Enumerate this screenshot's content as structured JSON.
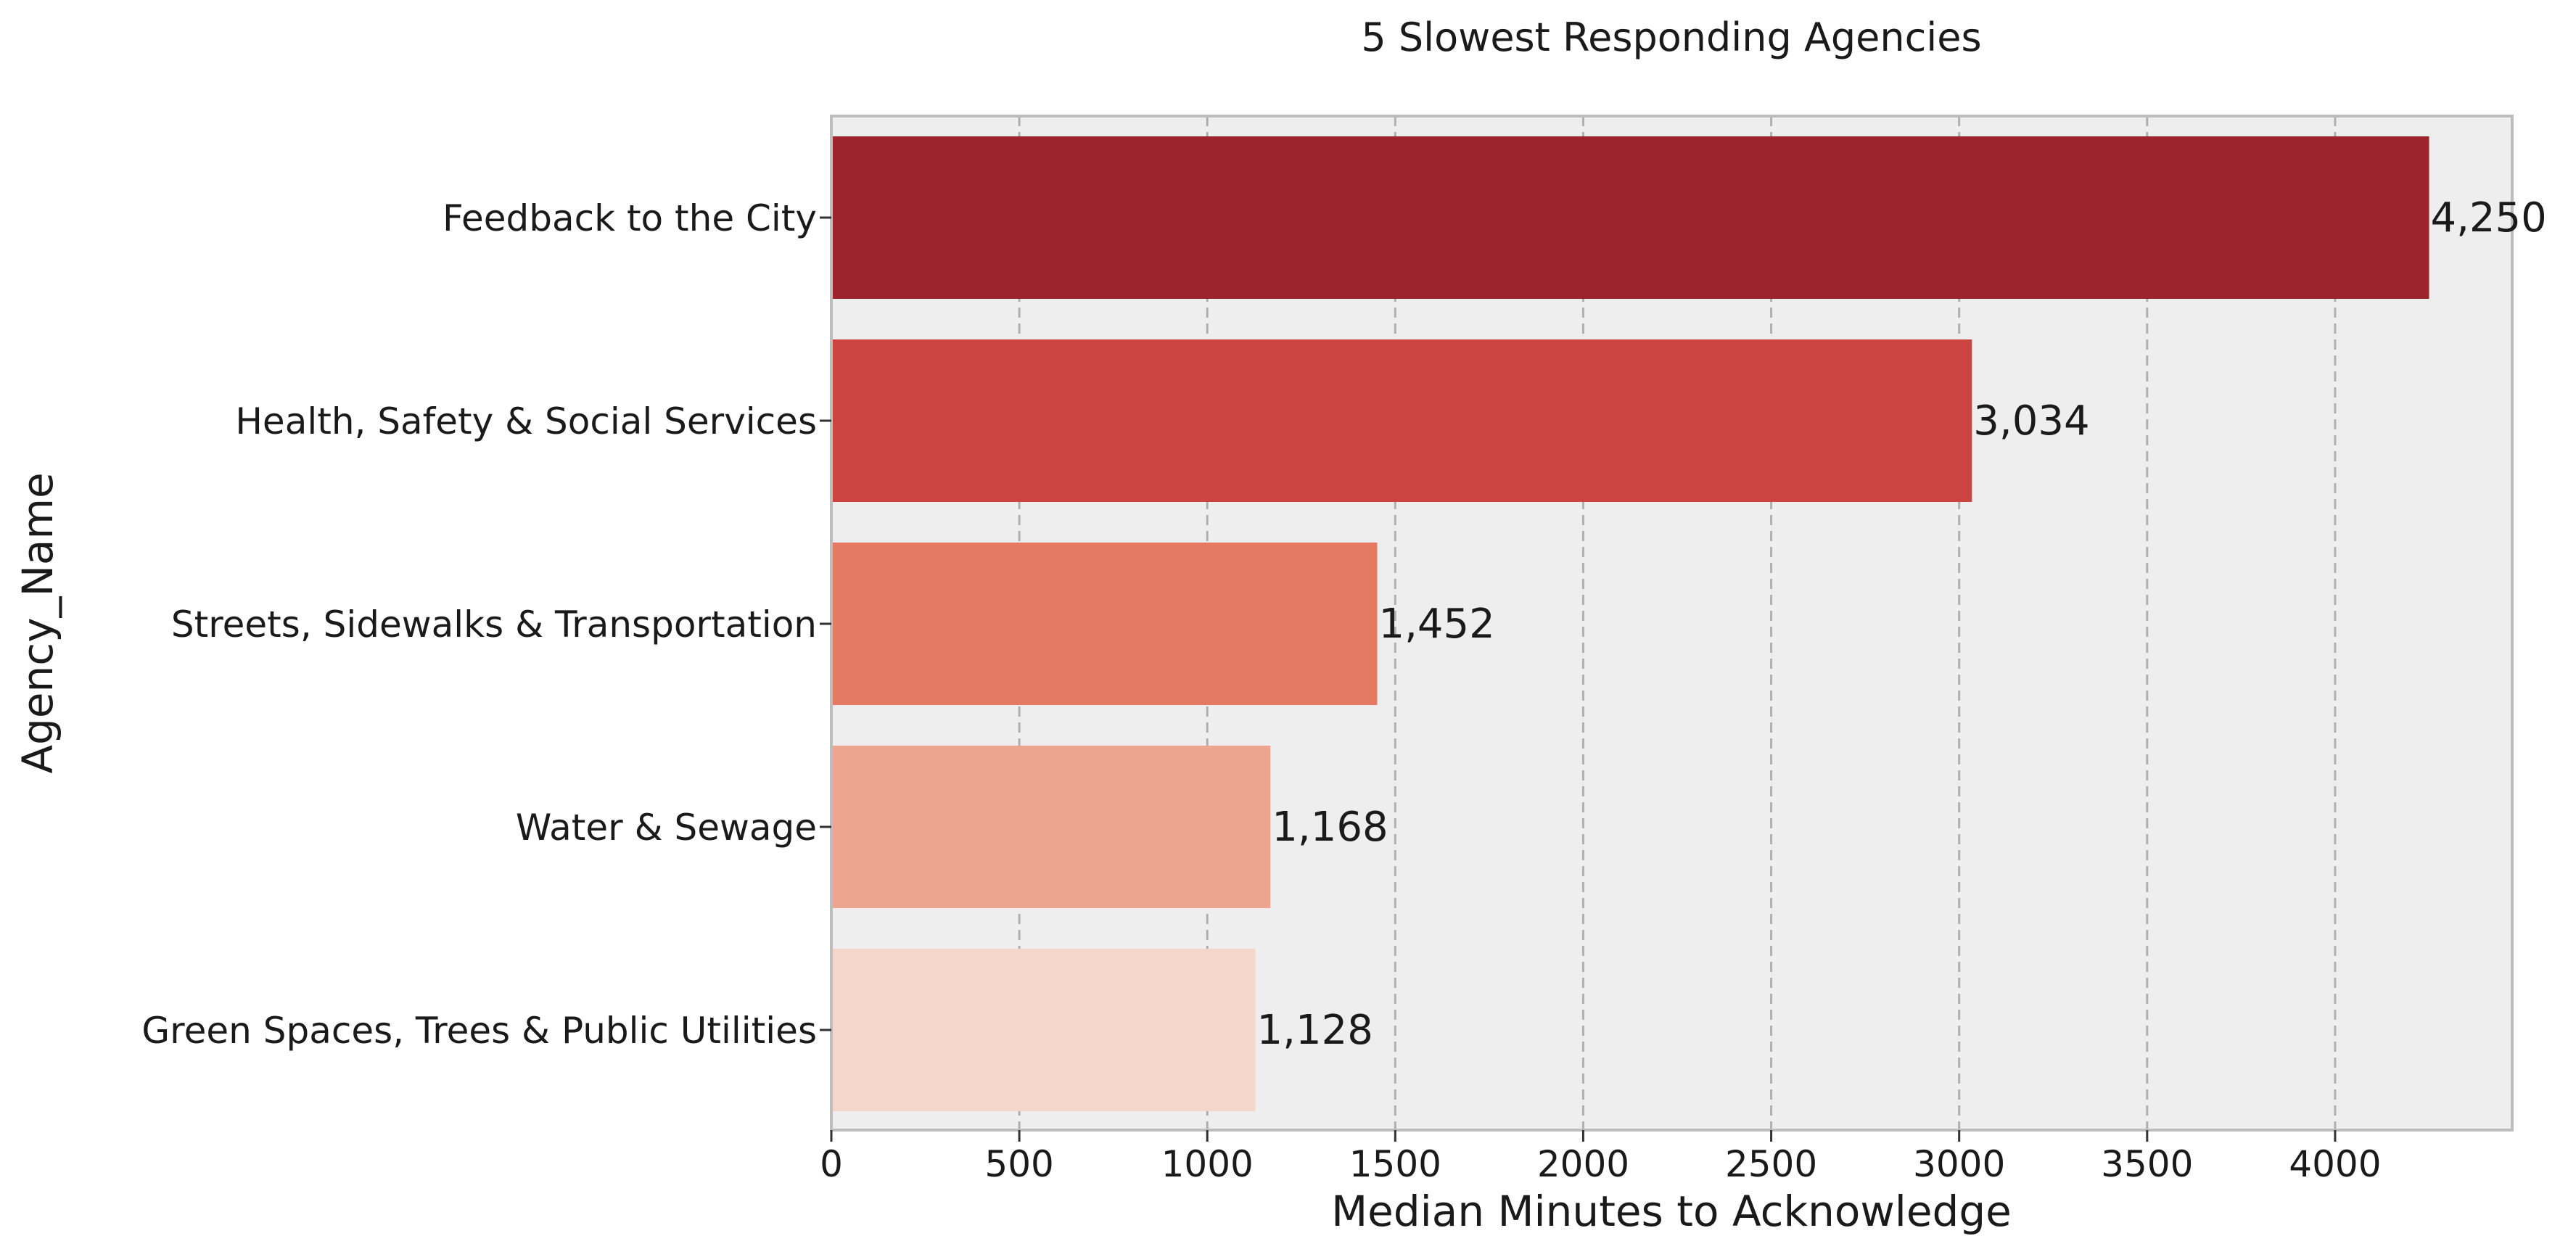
{
  "chart_data": {
    "type": "bar",
    "orientation": "horizontal",
    "title": "5 Slowest Responding Agencies",
    "xlabel": "Median Minutes to Acknowledge",
    "ylabel": "Agency_Name",
    "xlim": [
      0,
      4471
    ],
    "xticks": [
      0,
      500,
      1000,
      1500,
      2000,
      2500,
      3000,
      3500,
      4000
    ],
    "xtick_labels": [
      "0",
      "500",
      "1000",
      "1500",
      "2000",
      "2500",
      "3000",
      "3500",
      "4000"
    ],
    "categories": [
      "Feedback to the City",
      "Health, Safety & Social Services",
      "Streets, Sidewalks & Transportation",
      "Water & Sewage",
      "Green Spaces, Trees & Public Utilities"
    ],
    "values": [
      4250,
      3034,
      1452,
      1168,
      1128
    ],
    "value_labels": [
      "4,250",
      "3,034",
      "1,452",
      "1,168",
      "1,128"
    ],
    "colors": [
      "#9c252b",
      "#cb4440",
      "#e67961",
      "#eca58f",
      "#f6d5ca"
    ],
    "grid": {
      "x": true,
      "y": false,
      "style": "dashed",
      "color": "#b0b0b0"
    },
    "background": "#eeeeee",
    "frame_color": "#bdbdbd",
    "legend": "none"
  }
}
